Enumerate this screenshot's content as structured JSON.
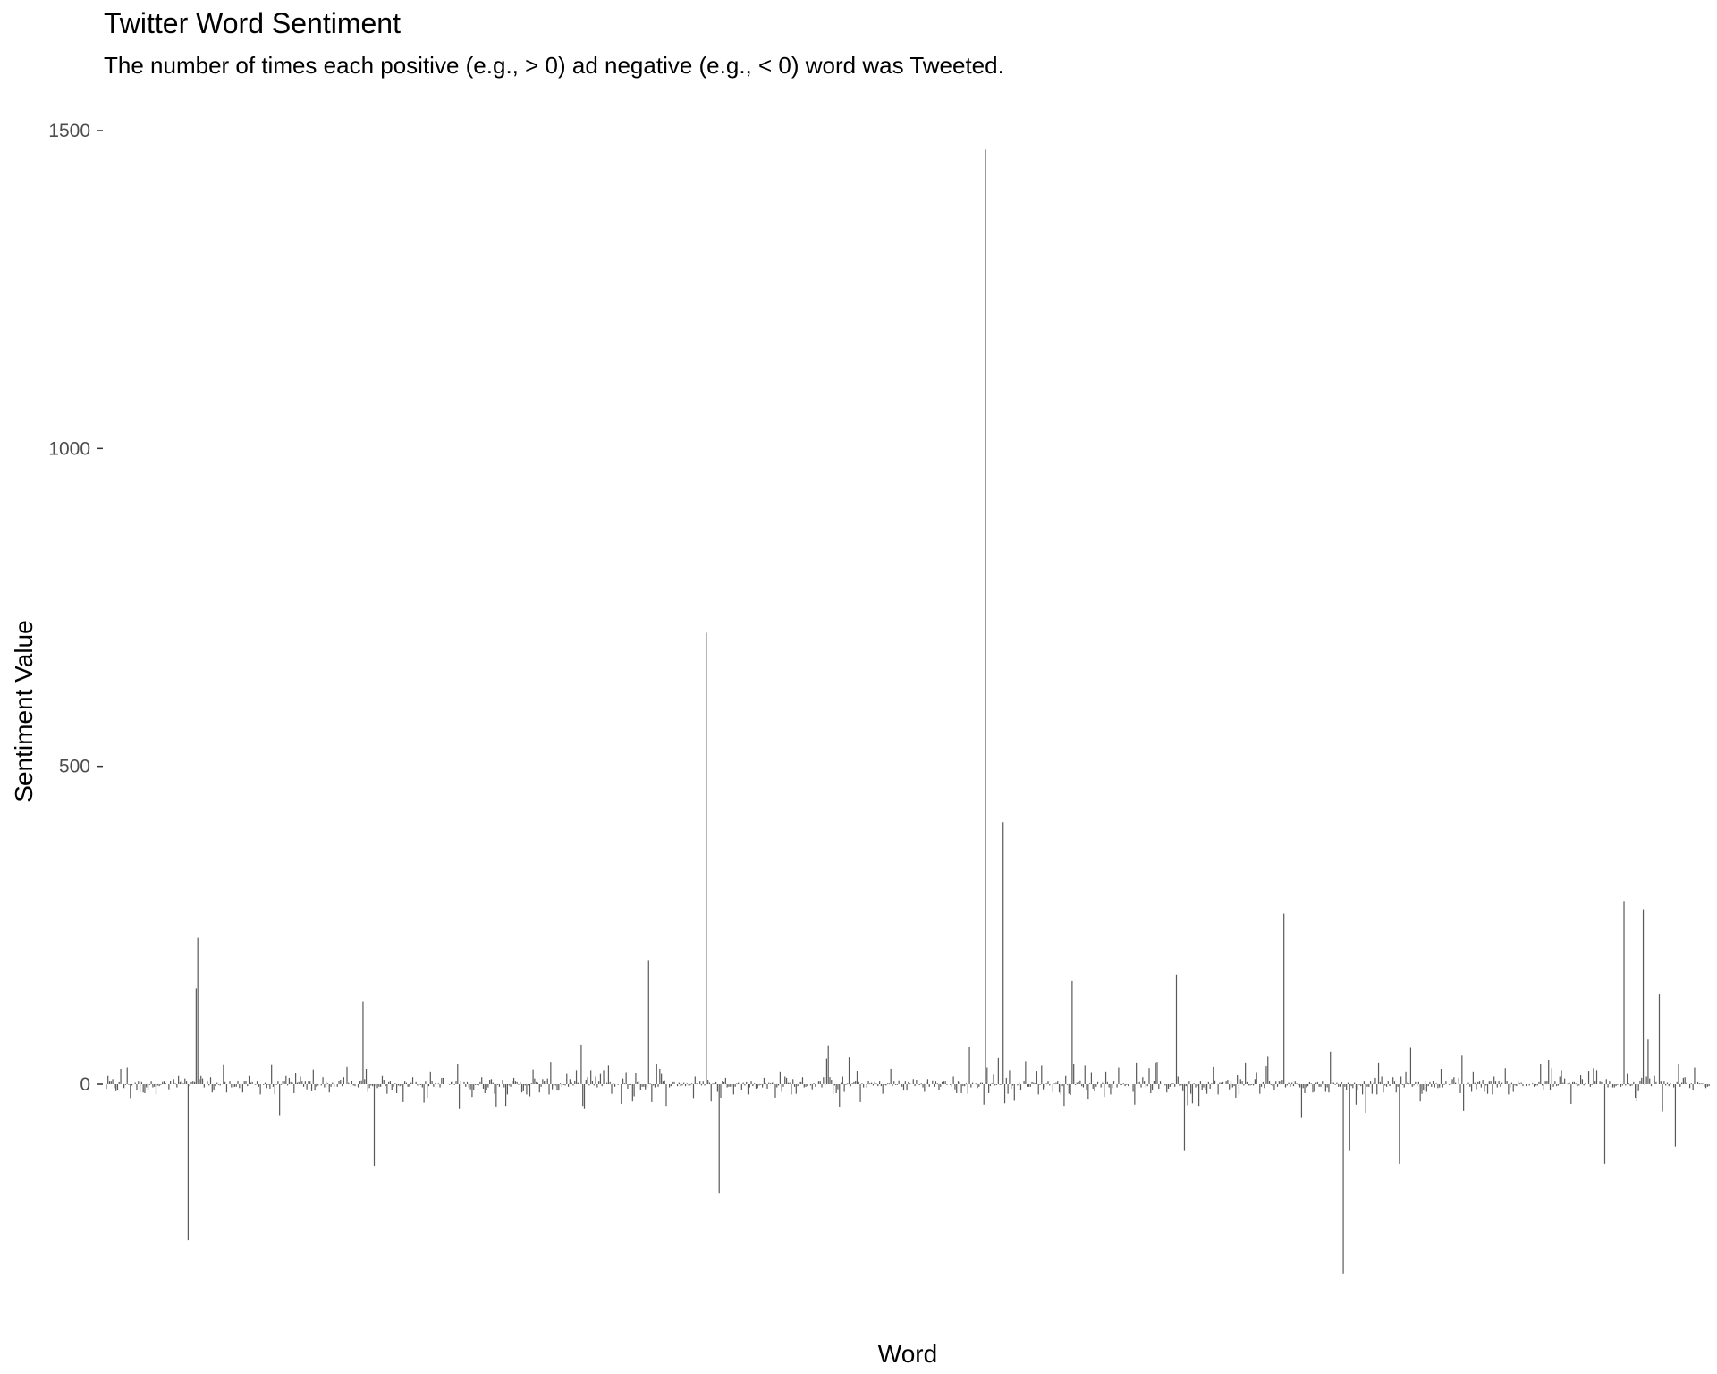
{
  "chart_data": {
    "type": "bar",
    "title": "Twitter Word Sentiment",
    "subtitle": "The number of times each positive (e.g., > 0) ad negative (e.g., < 0) word was Tweeted.",
    "xlabel": "Word",
    "ylabel": "Sentiment Value",
    "ylim": [
      -320,
      1500
    ],
    "yticks": [
      0,
      500,
      1000,
      1500
    ],
    "x_tick_labels_shown": false,
    "grid": false,
    "bar_color": "#595959",
    "n_words": 1000,
    "notable_values": [
      {
        "index": 51,
        "value": -245
      },
      {
        "index": 57,
        "value": 230
      },
      {
        "index": 56,
        "value": 150
      },
      {
        "index": 160,
        "value": 130
      },
      {
        "index": 167,
        "value": -128
      },
      {
        "index": 338,
        "value": 195
      },
      {
        "index": 382,
        "value": -172
      },
      {
        "index": 374,
        "value": 710
      },
      {
        "index": 548,
        "value": 1470
      },
      {
        "index": 559,
        "value": 412
      },
      {
        "index": 602,
        "value": 162
      },
      {
        "index": 667,
        "value": 172
      },
      {
        "index": 672,
        "value": -105
      },
      {
        "index": 734,
        "value": 268
      },
      {
        "index": 771,
        "value": -298
      },
      {
        "index": 775,
        "value": -105
      },
      {
        "index": 806,
        "value": -125
      },
      {
        "index": 934,
        "value": -125
      },
      {
        "index": 946,
        "value": 288
      },
      {
        "index": 958,
        "value": 275
      },
      {
        "index": 961,
        "value": 70
      },
      {
        "index": 968,
        "value": 142
      },
      {
        "index": 978,
        "value": -98
      }
    ]
  }
}
